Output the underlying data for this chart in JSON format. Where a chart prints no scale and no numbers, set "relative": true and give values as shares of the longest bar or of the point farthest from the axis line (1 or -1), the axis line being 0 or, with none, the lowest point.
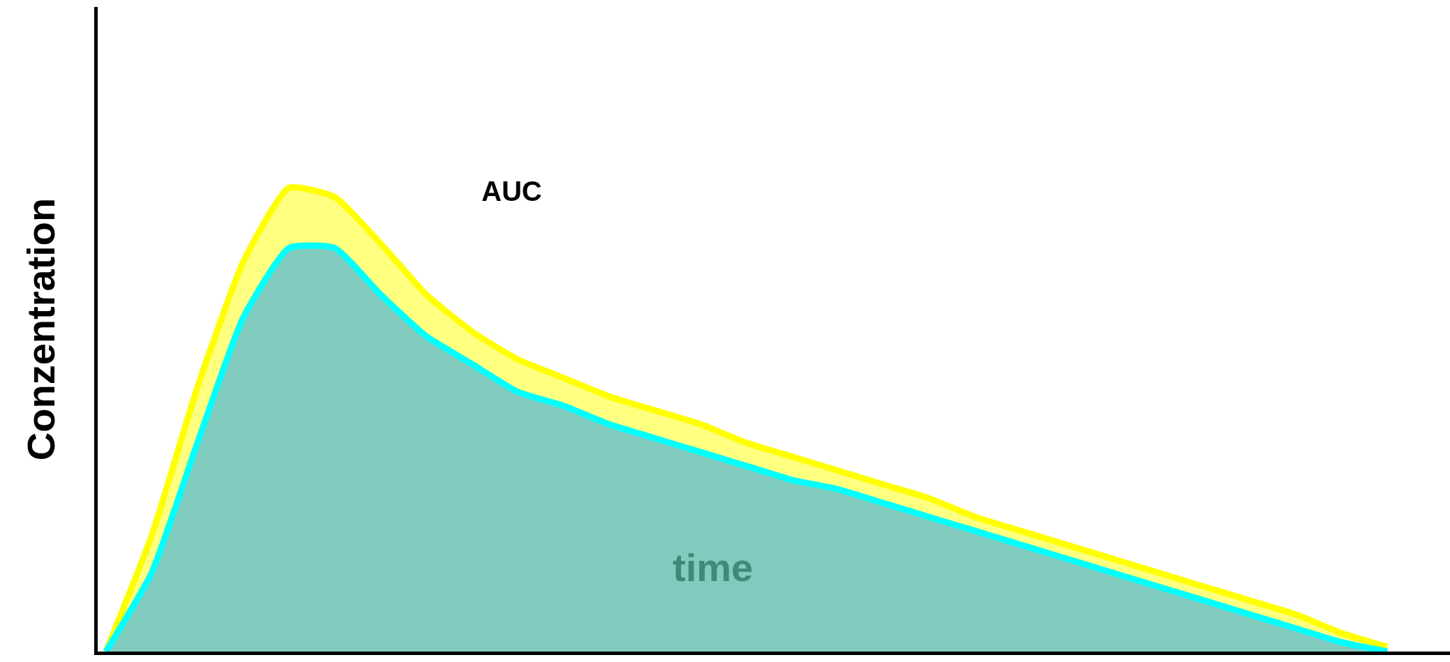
{
  "chart_data": {
    "type": "area",
    "relative": true,
    "ylabel": "Conzentration",
    "xlabel": "time",
    "annotations": [
      "AUC"
    ],
    "categories": [
      null,
      null,
      null,
      null,
      null,
      null,
      null,
      null,
      null,
      null,
      null,
      null,
      null,
      null,
      null,
      null,
      null,
      null,
      null,
      null,
      null,
      null,
      null,
      null,
      null,
      null,
      null,
      null,
      null
    ],
    "series": [
      {
        "color": "#ffff00",
        "values": [
          0,
          0.25,
          0.57,
          0.84,
          1,
          0.98,
          0.88,
          0.77,
          0.69,
          0.63,
          0.59,
          0.55,
          0.52,
          0.49,
          0.45,
          0.42,
          0.39,
          0.36,
          0.33,
          0.29,
          0.26,
          0.23,
          0.2,
          0.17,
          0.14,
          0.11,
          0.08,
          0.04,
          0.01
        ]
      },
      {
        "color": "#00ffff",
        "values": [
          0,
          0.17,
          0.45,
          0.72,
          0.87,
          0.87,
          0.77,
          0.68,
          0.62,
          0.56,
          0.53,
          0.49,
          0.46,
          0.43,
          0.4,
          0.37,
          0.35,
          0.32,
          0.29,
          0.26,
          0.23,
          0.2,
          0.17,
          0.14,
          0.11,
          0.08,
          0.05,
          0.02,
          0
        ]
      }
    ]
  }
}
